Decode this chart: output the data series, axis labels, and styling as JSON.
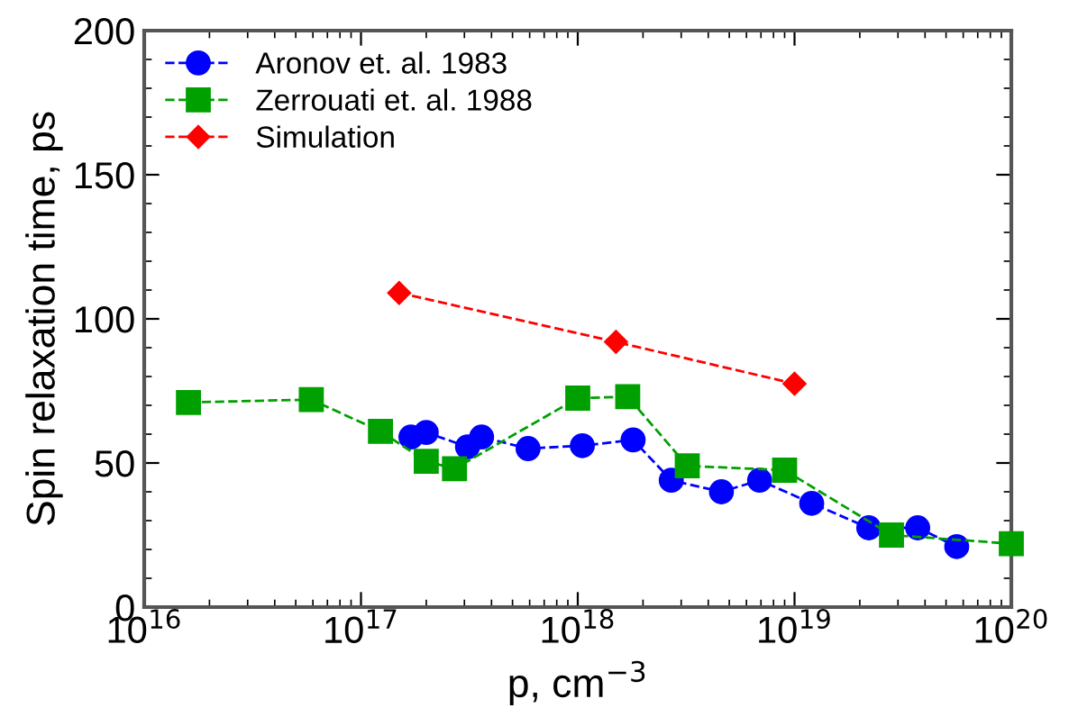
{
  "chart_data": {
    "type": "line",
    "xlabel": "p, cm$^{−3}$",
    "ylabel": "Spin relaxation time, ps",
    "log": "x",
    "xlim": [
      1e+16,
      1e+20
    ],
    "ylim": [
      0,
      200
    ],
    "xticks": [
      {
        "value": 1e+16,
        "label": "10$^{16}$"
      },
      {
        "value": 1e+17,
        "label": "10$^{17}$"
      },
      {
        "value": 1e+18,
        "label": "10$^{18}$"
      },
      {
        "value": 1e+19,
        "label": "10$^{19}$"
      },
      {
        "value": 1e+20,
        "label": "10$^{20}$"
      }
    ],
    "yticks": [
      0,
      50,
      100,
      150,
      200
    ],
    "grid": false,
    "legend": "top left",
    "line_style": "dashed",
    "series": [
      {
        "name": "Aronov et. al. 1983",
        "color": "#0000ff",
        "marker": "circle",
        "x": [
          1.7e+17,
          2e+17,
          3.1e+17,
          3.6e+17,
          5.9e+17,
          1.05e+18,
          1.8e+18,
          2.7e+18,
          4.6e+18,
          6.9e+18,
          1.2e+19,
          2.2e+19,
          3.7e+19,
          5.6e+19
        ],
        "values": [
          59,
          60.6,
          55.6,
          59,
          55,
          56,
          58,
          44,
          40,
          44,
          36,
          27.5,
          27.5,
          21
        ]
      },
      {
        "name": "Zerrouati et. al. 1988",
        "color": "#00a000",
        "marker": "square",
        "x": [
          1.6e+16,
          5.9e+16,
          1.23e+17,
          2e+17,
          2.7e+17,
          1e+18,
          1.7e+18,
          3.2e+18,
          9e+18,
          2.8e+19,
          1e+20
        ],
        "values": [
          71,
          72,
          61,
          50.6,
          48,
          72.5,
          73,
          49,
          47.5,
          25,
          22
        ]
      },
      {
        "name": "Simulation",
        "color": "#ff0000",
        "marker": "diamond",
        "x": [
          1.5e+17,
          1.5e+18,
          1e+19
        ],
        "values": [
          109,
          92,
          77.5
        ]
      }
    ]
  }
}
